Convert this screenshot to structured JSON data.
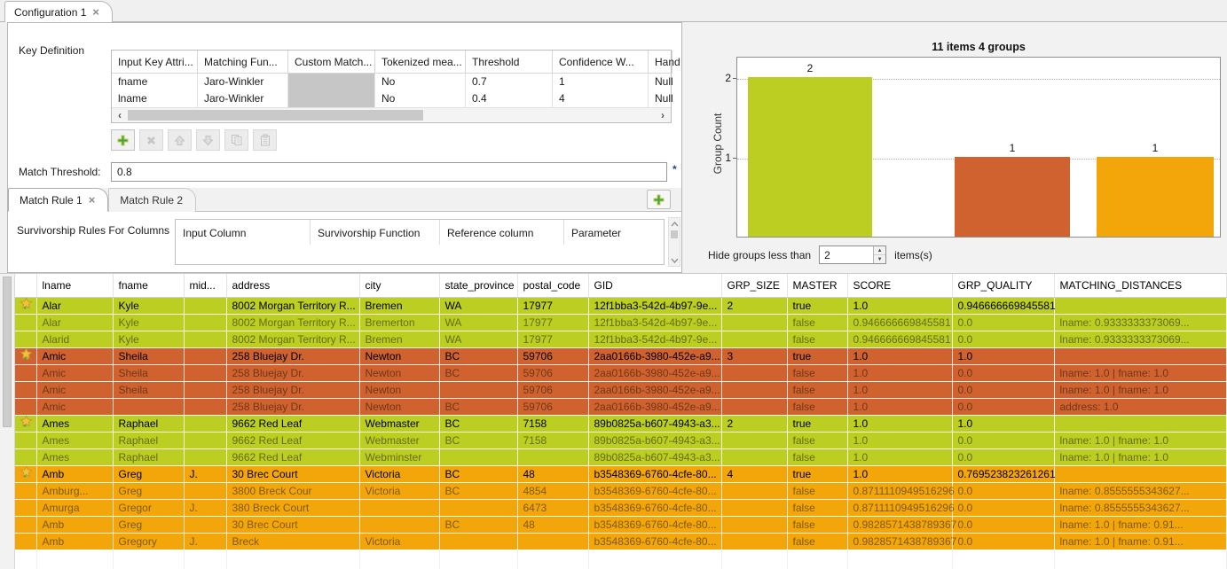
{
  "colors": {
    "group_green": "#bcce21",
    "group_red": "#d0622f",
    "group_amber": "#f3a60a",
    "add_button_green": "#46a046",
    "required_asterisk": "#26418f"
  },
  "icons": {
    "tab_close": "×",
    "scroll_left": "‹",
    "scroll_right": "›",
    "spinner_up": "▲",
    "spinner_down": "▼"
  },
  "main_tab": {
    "label": "Configuration 1"
  },
  "key_definition": {
    "label": "Key Definition",
    "columns": [
      "Input Key Attri...",
      "Matching Fun...",
      "Custom Match...",
      "Tokenized mea...",
      "Threshold",
      "Confidence W...",
      "Hand"
    ],
    "rows": [
      {
        "input_key_attribute": "fname",
        "matching_function": "Jaro-Winkler",
        "custom_matcher": "",
        "tokenized_measure": "No",
        "threshold": "0.7",
        "confidence_weight": "1",
        "handle_null": "Null"
      },
      {
        "input_key_attribute": "lname",
        "matching_function": "Jaro-Winkler",
        "custom_matcher": "",
        "tokenized_measure": "No",
        "threshold": "0.4",
        "confidence_weight": "4",
        "handle_null": "Null"
      }
    ]
  },
  "match_threshold": {
    "label": "Match Threshold:",
    "value": "0.8",
    "required_marker": "*"
  },
  "match_rule_tabs": {
    "tab1": "Match Rule 1",
    "tab2": "Match Rule 2"
  },
  "survivorship": {
    "label": "Survivorship Rules For Columns",
    "columns": [
      "Input Column",
      "Survivorship Function",
      "Reference column",
      "Parameter"
    ]
  },
  "chart_data": {
    "type": "bar",
    "title": "11 items 4 groups",
    "ylabel": "Group Count",
    "values": [
      2,
      1,
      1
    ],
    "bar_labels": [
      "2",
      "1",
      "1"
    ],
    "bar_colors": [
      "#bcce21",
      "#d0622f",
      "#f3a60a"
    ],
    "yticks": [
      "1",
      "2"
    ],
    "ylim": [
      0,
      2.25
    ],
    "grid": "horizontal-dotted",
    "legend": "none",
    "x_tick_labels": []
  },
  "hide_groups": {
    "label_before": "Hide groups less than",
    "value": "2",
    "label_after": "items(s)"
  },
  "results_table": {
    "columns": [
      "lname",
      "fname",
      "mid...",
      "address",
      "city",
      "state_province",
      "postal_code",
      "GID",
      "GRP_SIZE",
      "MASTER",
      "SCORE",
      "GRP_QUALITY",
      "MATCHING_DISTANCES"
    ],
    "groups": [
      {
        "color": "#bcce21",
        "rows": [
          [
            "Alar",
            "Kyle",
            "",
            "8002 Morgan Territory R...",
            "Bremen",
            "WA",
            "17977",
            "12f1bba3-542d-4b97-9e...",
            "2",
            "true",
            "1.0",
            "0.946666669845581",
            ""
          ],
          [
            "Alar",
            "Kyle",
            "",
            "8002 Morgan Territory R...",
            "Bremerton",
            "WA",
            "17977",
            "12f1bba3-542d-4b97-9e...",
            "",
            "false",
            "0.946666669845581",
            "0.0",
            "lname: 0.9333333373069..."
          ],
          [
            "Alarid",
            "Kyle",
            "",
            "8002 Morgan Territory R...",
            "Bremen",
            "WA",
            "17977",
            "12f1bba3-542d-4b97-9e...",
            "",
            "false",
            "0.946666669845581",
            "0.0",
            "lname: 0.9333333373069..."
          ]
        ]
      },
      {
        "color": "#d0622f",
        "rows": [
          [
            "Amic",
            "Sheila",
            "",
            "258 Bluejay Dr.",
            "Newton",
            "BC",
            "59706",
            "2aa0166b-3980-452e-a9...",
            "3",
            "true",
            "1.0",
            "1.0",
            ""
          ],
          [
            "Amic",
            "Sheila",
            "",
            "258 Bluejay Dr.",
            "Newton",
            "BC",
            "59706",
            "2aa0166b-3980-452e-a9...",
            "",
            "false",
            "1.0",
            "0.0",
            "lname: 1.0 | fname: 1.0"
          ],
          [
            "Amic",
            "Sheila",
            "",
            "258 Bluejay Dr.",
            "Newton",
            "",
            "59706",
            "2aa0166b-3980-452e-a9...",
            "",
            "false",
            "1.0",
            "0.0",
            "lname: 1.0 | fname: 1.0"
          ],
          [
            "Amic",
            "",
            "",
            "258 Bluejay Dr.",
            "Newton",
            "BC",
            "59706",
            "2aa0166b-3980-452e-a9...",
            "",
            "false",
            "1.0",
            "0.0",
            "address: 1.0"
          ]
        ]
      },
      {
        "color": "#bcce21",
        "rows": [
          [
            "Ames",
            "Raphael",
            "",
            "9662 Red Leaf",
            "Webmaster",
            "BC",
            "7158",
            "89b0825a-b607-4943-a3...",
            "2",
            "true",
            "1.0",
            "1.0",
            ""
          ],
          [
            "Ames",
            "Raphael",
            "",
            "9662 Red Leaf",
            "Webmaster",
            "BC",
            "7158",
            "89b0825a-b607-4943-a3...",
            "",
            "false",
            "1.0",
            "0.0",
            "lname: 1.0 | fname: 1.0"
          ],
          [
            "Ames",
            "Raphael",
            "",
            "9662 Red Leaf",
            "Webminster",
            "",
            "",
            "89b0825a-b607-4943-a3...",
            "",
            "false",
            "1.0",
            "0.0",
            "lname: 1.0 | fname: 1.0"
          ]
        ]
      },
      {
        "color": "#f3a60a",
        "rows": [
          [
            "Amb",
            "Greg",
            "J.",
            "30 Brec Court",
            "Victoria",
            "BC",
            "48",
            "b3548369-6760-4cfe-80...",
            "4",
            "true",
            "1.0",
            "0.769523823261261",
            ""
          ],
          [
            "Amburg...",
            "Greg",
            "",
            "3800 Breck Cour",
            "Victoria",
            "BC",
            "4854",
            "b3548369-6760-4cfe-80...",
            "",
            "false",
            "0.8711110949516296",
            "0.0",
            "lname: 0.8555555343627..."
          ],
          [
            "Amurga",
            "Gregor",
            "J.",
            "380 Breck Court",
            "",
            "",
            "6473",
            "b3548369-6760-4cfe-80...",
            "",
            "false",
            "0.8711110949516296",
            "0.0",
            "lname: 0.8555555343627..."
          ],
          [
            "Amb",
            "Greg",
            "",
            "30 Brec Court",
            "",
            "BC",
            "48",
            "b3548369-6760-4cfe-80...",
            "",
            "false",
            "0.9828571438789367",
            "0.0",
            "lname: 1.0 | fname: 0.91..."
          ],
          [
            "Amb",
            "Gregory",
            "J.",
            "Breck",
            "Victoria",
            "",
            "",
            "b3548369-6760-4cfe-80...",
            "",
            "false",
            "0.9828571438789367",
            "0.0",
            "lname: 1.0 | fname: 0.91..."
          ]
        ]
      }
    ]
  }
}
